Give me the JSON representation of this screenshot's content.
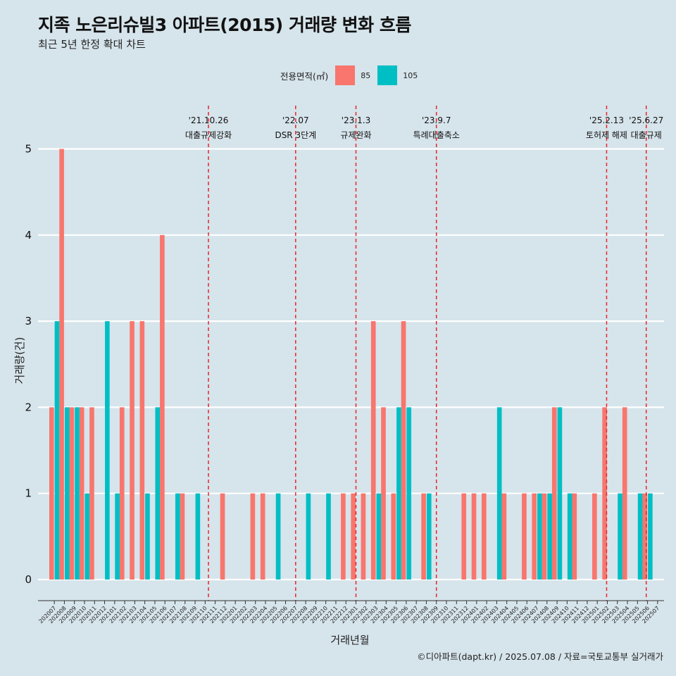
{
  "chart_data": {
    "type": "bar",
    "title": "지족 노은리슈빌3 아파트(2015) 거래량 변화 흐름",
    "subtitle": "최근 5년 한정 확대 차트",
    "xlabel": "거래년월",
    "ylabel": "거래량(건)",
    "ylim": [
      0,
      5
    ],
    "yticks": [
      0,
      1,
      2,
      3,
      4,
      5
    ],
    "legend": {
      "title": "전용면적(㎡)",
      "position": "top",
      "entries": [
        {
          "name": "85",
          "color": "#f8766d"
        },
        {
          "name": "105",
          "color": "#00bfc4"
        }
      ]
    },
    "categories": [
      "202007",
      "202008",
      "202009",
      "202010",
      "202011",
      "202012",
      "202101",
      "202102",
      "202103",
      "202104",
      "202105",
      "202106",
      "202107",
      "202108",
      "202109",
      "202110",
      "202111",
      "202112",
      "202201",
      "202202",
      "202203",
      "202204",
      "202205",
      "202206",
      "202207",
      "202208",
      "202209",
      "202210",
      "202211",
      "202212",
      "202301",
      "202302",
      "202303",
      "202304",
      "202305",
      "202306",
      "202307",
      "202308",
      "202309",
      "202310",
      "202311",
      "202312",
      "202401",
      "202402",
      "202403",
      "202404",
      "202405",
      "202406",
      "202407",
      "202408",
      "202409",
      "202410",
      "202411",
      "202412",
      "202501",
      "202502",
      "202503",
      "202504",
      "202505",
      "202506",
      "202507"
    ],
    "series": [
      {
        "name": "85",
        "color": "#f8766d",
        "values": [
          2,
          5,
          2,
          2,
          2,
          0,
          0,
          2,
          3,
          3,
          0,
          4,
          0,
          1,
          0,
          0,
          0,
          1,
          0,
          0,
          1,
          1,
          0,
          0,
          0,
          0,
          0,
          0,
          0,
          1,
          1,
          1,
          3,
          2,
          1,
          3,
          0,
          1,
          0,
          0,
          0,
          1,
          1,
          1,
          0,
          1,
          0,
          1,
          1,
          1,
          2,
          0,
          1,
          0,
          1,
          2,
          0,
          2,
          0,
          1,
          0
        ]
      },
      {
        "name": "105",
        "color": "#00bfc4",
        "values": [
          3,
          2,
          2,
          1,
          0,
          3,
          1,
          0,
          0,
          1,
          2,
          0,
          1,
          0,
          1,
          0,
          0,
          0,
          0,
          0,
          0,
          0,
          1,
          0,
          0,
          1,
          0,
          1,
          0,
          0,
          0,
          0,
          1,
          0,
          2,
          2,
          0,
          1,
          0,
          0,
          0,
          0,
          0,
          0,
          2,
          0,
          0,
          0,
          1,
          1,
          2,
          1,
          0,
          0,
          0,
          0,
          1,
          0,
          1,
          1,
          0
        ]
      }
    ],
    "events": [
      {
        "date": "'21.10.26",
        "label": "대출규제강화",
        "month_index": 15.83
      },
      {
        "date": "'22.07",
        "label": "DSR 3단계",
        "month_index": 24.5
      },
      {
        "date": "'23.1.3",
        "label": "규제완화",
        "month_index": 30.5
      },
      {
        "date": "'23.9.7",
        "label": "특례대출축소",
        "month_index": 38.5
      },
      {
        "date": "'25.2.13",
        "label": "토허제 해제",
        "month_index": 55.43
      },
      {
        "date": "'25.6.27",
        "label": "대출규제",
        "month_index": 59.37
      }
    ],
    "grid": true
  },
  "caption": "©디아파트(dapt.kr) / 2025.07.08 / 자료=국토교통부 실거래가"
}
